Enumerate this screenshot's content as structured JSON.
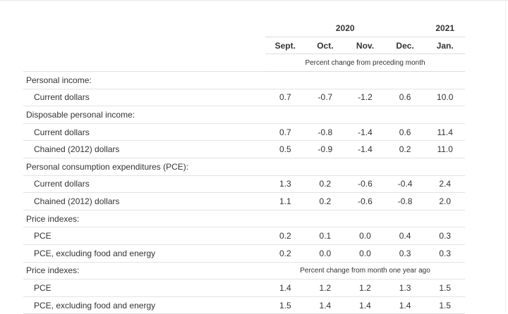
{
  "header": {
    "year_2020": "2020",
    "year_2021": "2021",
    "months": [
      "Sept.",
      "Oct.",
      "Nov.",
      "Dec.",
      "Jan."
    ],
    "note_monthly": "Percent change from preceding month"
  },
  "rows": [
    {
      "label": "Personal income:"
    },
    {
      "label": "Current dollars",
      "values": [
        "0.7",
        "-0.7",
        "-1.2",
        "0.6",
        "10.0"
      ]
    },
    {
      "label": "Disposable personal income:"
    },
    {
      "label": "Current dollars",
      "values": [
        "0.7",
        "-0.8",
        "-1.4",
        "0.6",
        "11.4"
      ]
    },
    {
      "label": "Chained (2012) dollars",
      "values": [
        "0.5",
        "-0.9",
        "-1.4",
        "0.2",
        "11.0"
      ]
    },
    {
      "label": "Personal consumption expenditures (PCE):"
    },
    {
      "label": "Current dollars",
      "values": [
        "1.3",
        "0.2",
        "-0.6",
        "-0.4",
        "2.4"
      ]
    },
    {
      "label": "Chained (2012) dollars",
      "values": [
        "1.1",
        "0.2",
        "-0.6",
        "-0.8",
        "2.0"
      ]
    },
    {
      "label": "Price indexes:"
    },
    {
      "label": "PCE",
      "values": [
        "0.2",
        "0.1",
        "0.0",
        "0.4",
        "0.3"
      ]
    },
    {
      "label": "PCE, excluding food and energy",
      "values": [
        "0.2",
        "0.0",
        "0.0",
        "0.3",
        "0.3"
      ]
    },
    {
      "label": "Price indexes:",
      "note": "Percent change from month one year ago"
    },
    {
      "label": "PCE",
      "values": [
        "1.4",
        "1.2",
        "1.2",
        "1.3",
        "1.5"
      ]
    },
    {
      "label": "PCE, excluding food and energy",
      "values": [
        "1.5",
        "1.4",
        "1.4",
        "1.4",
        "1.5"
      ]
    }
  ]
}
